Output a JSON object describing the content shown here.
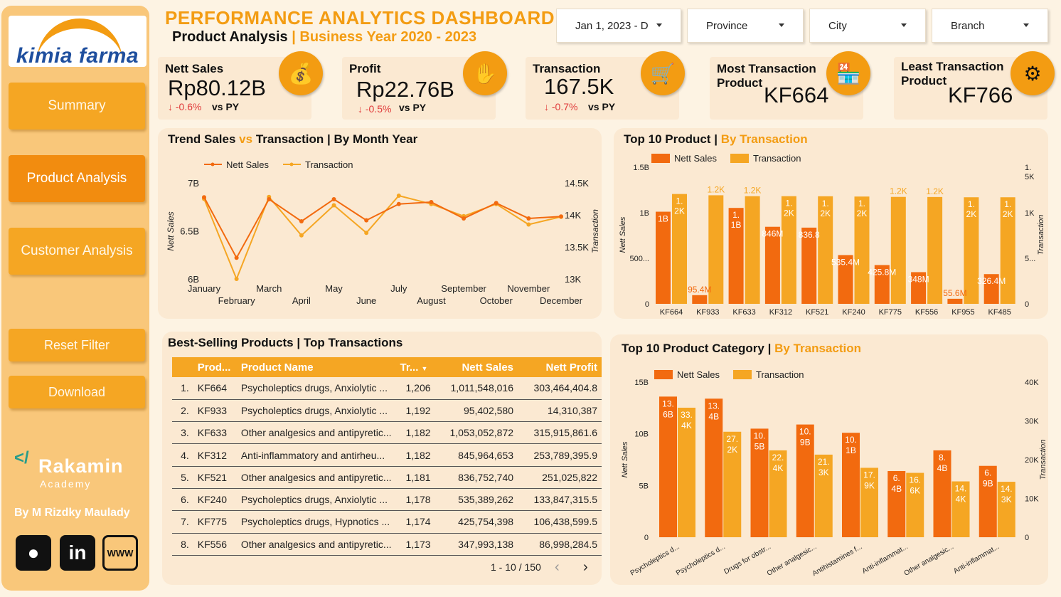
{
  "brand": {
    "logo_text": "kimia farma"
  },
  "sidebar": {
    "nav": [
      "Summary",
      "Product Analysis",
      "Customer Analysis"
    ],
    "reset": "Reset Filter",
    "download": "Download",
    "rakamin_name": "Rakamin",
    "rakamin_sub": "Academy",
    "byline": "By M Rizdky Maulady"
  },
  "header": {
    "title": "PERFORMANCE ANALYTICS DASHBOARD",
    "subtitle": "Product Analysis",
    "separator": "|",
    "period": "Business Year 2020 - 2023"
  },
  "filters": [
    "Jan 1, 2023 - D",
    "Province",
    "City",
    "Branch"
  ],
  "kpis": [
    {
      "label": "Nett Sales",
      "value": "Rp80.12B",
      "delta": "-0.6%",
      "vs": "vs PY"
    },
    {
      "label": "Profit",
      "value": "Rp22.76B",
      "delta": "-0.5%",
      "vs": "vs PY"
    },
    {
      "label": "Transaction",
      "value": "167.5K",
      "delta": "-0.7%",
      "vs": "vs PY"
    },
    {
      "label": "Most Transaction Product",
      "value": "KF664"
    },
    {
      "label": "Least Transaction Product",
      "value": "KF766"
    }
  ],
  "colors": {
    "nett_sales": "#f26a0f",
    "transaction": "#f5a623",
    "accent": "#f39c12",
    "header_bg": "#f5a623",
    "negative": "#e03b3b"
  },
  "icons": [
    "money-icon",
    "profit-hand-icon",
    "cart-check-icon",
    "store-badge-icon",
    "gear-coin-icon"
  ],
  "trend_title": {
    "main": "Trend Sales",
    "vs": "vs",
    "second": "Transaction",
    "sep": "|",
    "by": "By Month Year"
  },
  "top_product_title": {
    "main": "Top 10 Product",
    "sep": "|",
    "by": "By Transaction"
  },
  "top_category_title": {
    "main": "Top 10 Product Category",
    "sep": "|",
    "by": "By Transaction"
  },
  "table_title": "Best-Selling Products | Top Transactions",
  "table": {
    "headers": [
      "Prod...",
      "Product Name",
      "Tr...",
      "Nett Sales",
      "Nett Profit"
    ],
    "rows": [
      [
        "1.",
        "KF664",
        "Psycholeptics drugs, Anxiolytic ...",
        "1,206",
        "1,011,548,016",
        "303,464,404.8"
      ],
      [
        "2.",
        "KF933",
        "Psycholeptics drugs, Anxiolytic ...",
        "1,192",
        "95,402,580",
        "14,310,387"
      ],
      [
        "3.",
        "KF633",
        "Other analgesics and antipyretic...",
        "1,182",
        "1,053,052,872",
        "315,915,861.6"
      ],
      [
        "4.",
        "KF312",
        "Anti-inflammatory and antirheu...",
        "1,182",
        "845,964,653",
        "253,789,395.9"
      ],
      [
        "5.",
        "KF521",
        "Other analgesics and antipyretic...",
        "1,181",
        "836,752,740",
        "251,025,822"
      ],
      [
        "6.",
        "KF240",
        "Psycholeptics drugs, Anxiolytic ...",
        "1,178",
        "535,389,262",
        "133,847,315.5"
      ],
      [
        "7.",
        "KF775",
        "Psycholeptics drugs, Hypnotics ...",
        "1,174",
        "425,754,398",
        "106,438,599.5"
      ],
      [
        "8.",
        "KF556",
        "Other analgesics and antipyretic...",
        "1,173",
        "347,993,138",
        "86,998,284.5"
      ]
    ],
    "pager": "1 - 10 / 150"
  },
  "chart_data": [
    {
      "type": "line",
      "x": [
        "January",
        "February",
        "March",
        "April",
        "May",
        "June",
        "July",
        "August",
        "September",
        "October",
        "November",
        "December"
      ],
      "series": [
        {
          "name": "Nett Sales",
          "values": [
            6.85,
            6.22,
            6.83,
            6.6,
            6.83,
            6.61,
            6.78,
            6.8,
            6.63,
            6.79,
            6.63,
            6.65
          ]
        },
        {
          "name": "Transaction",
          "values": [
            14.25,
            13.0,
            14.28,
            13.68,
            14.15,
            13.72,
            14.3,
            14.17,
            13.98,
            14.17,
            13.85,
            13.97
          ]
        }
      ],
      "xlabel": "",
      "ylabel": "Nett Sales",
      "y2label": "Transaction",
      "yticks": [
        "6B",
        "6.5B",
        "7B"
      ],
      "y2ticks": [
        "13K",
        "13.5K",
        "14K",
        "14.5K"
      ],
      "ylim": [
        6.0,
        7.0
      ],
      "y2lim": [
        13.0,
        14.5
      ],
      "legend": "top-left"
    },
    {
      "type": "bar",
      "categories": [
        "KF664",
        "KF933",
        "KF633",
        "KF312",
        "KF521",
        "KF240",
        "KF775",
        "KF556",
        "KF955",
        "KF485"
      ],
      "series": [
        {
          "name": "Nett Sales",
          "values": [
            1011.5,
            95.4,
            1053.1,
            846.0,
            836.8,
            535.4,
            425.8,
            348.0,
            55.6,
            326.4
          ],
          "labels": [
            "1B",
            "95.4M",
            "1.\n1B",
            "846M",
            "836.8",
            "535.4M",
            "425.8M",
            "348M",
            "55.6M",
            "326.4M"
          ]
        },
        {
          "name": "Transaction",
          "values": [
            1206,
            1192,
            1182,
            1182,
            1181,
            1178,
            1174,
            1173,
            1170,
            1170
          ],
          "labels": [
            "1.\n2K",
            "1.2K",
            "1.2K",
            "1.\n2K",
            "1.\n2K",
            "1.\n2K",
            "1.2K",
            "1.2K",
            "1.\n2K",
            "1.\n2K"
          ]
        }
      ],
      "ylabel": "Nett Sales",
      "y2label": "Transaction",
      "yticks": [
        "0",
        "500...",
        "1B",
        "1.5B"
      ],
      "y2ticks": [
        "0",
        "5...",
        "1K",
        "1.\n5K"
      ],
      "ylim": [
        0,
        1500
      ],
      "y2lim": [
        0,
        1500
      ],
      "legend": "top-left"
    },
    {
      "type": "bar",
      "categories": [
        "Psycholeptics d...",
        "Psycholeptics d...",
        "Drugs for obstr...",
        "Other analgesic...",
        "Antihistamines f...",
        "Anti-inflammat...",
        "Other analgesic...",
        "Anti-inflammat..."
      ],
      "series": [
        {
          "name": "Nett Sales",
          "values": [
            13.6,
            13.4,
            10.5,
            10.9,
            10.1,
            6.4,
            8.4,
            6.9
          ],
          "labels": [
            "13.\n6B",
            "13.\n4B",
            "10.\n5B",
            "10.\n9B",
            "10.\n1B",
            "6.\n4B",
            "8.\n4B",
            "6.\n9B"
          ]
        },
        {
          "name": "Transaction",
          "values": [
            33.4,
            27.2,
            22.4,
            21.3,
            17.9,
            16.6,
            14.4,
            14.3
          ],
          "labels": [
            "33.\n4K",
            "27.\n2K",
            "22.\n4K",
            "21.\n3K",
            "17.\n9K",
            "16.\n6K",
            "14.\n4K",
            "14.\n3K"
          ]
        }
      ],
      "ylabel": "Nett Sales",
      "y2label": "Transaction",
      "yticks": [
        "0",
        "5B",
        "10B",
        "15B"
      ],
      "y2ticks": [
        "0",
        "10K",
        "20K",
        "30K",
        "40K"
      ],
      "ylim": [
        0,
        15
      ],
      "y2lim": [
        0,
        40
      ],
      "legend": "top-left"
    }
  ]
}
